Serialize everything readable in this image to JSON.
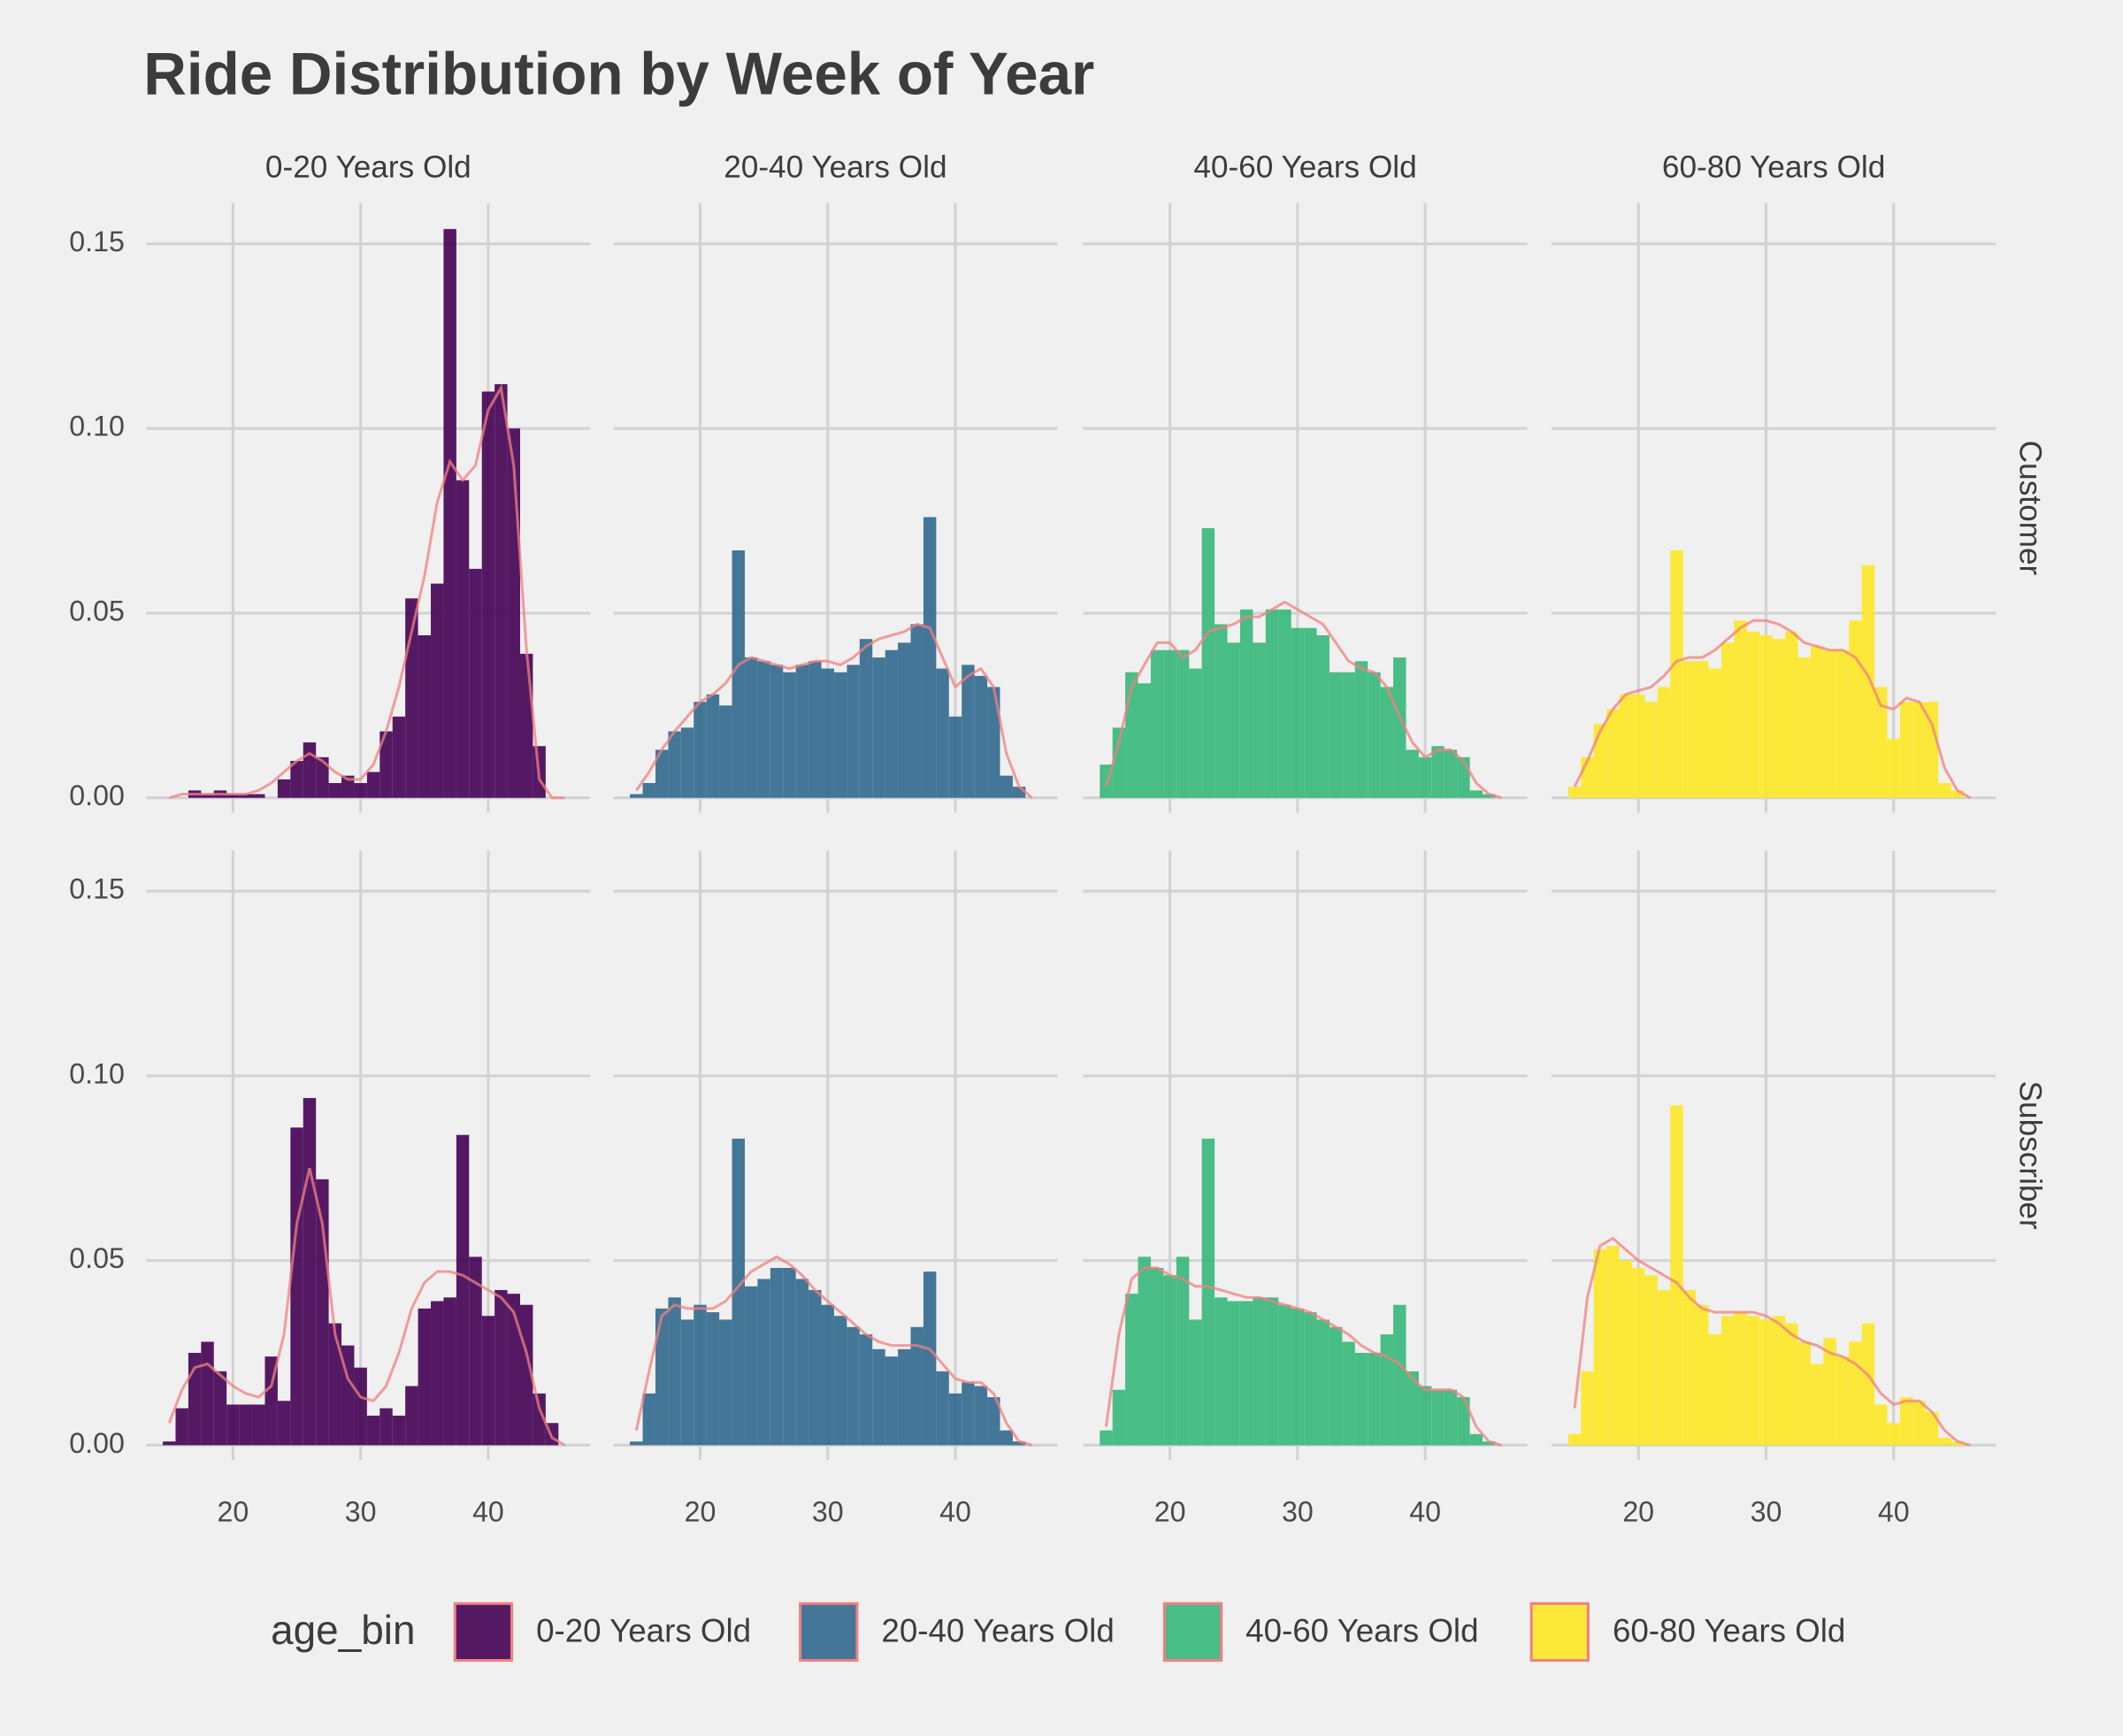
{
  "chart_data": {
    "type": "histogram",
    "title": "Ride Distribution by Week of Year",
    "legend_title": "age_bin",
    "facet_rows": [
      "Customer",
      "Subscriber"
    ],
    "bins": [
      14.5,
      15.5,
      16.5,
      17.5,
      18.5,
      19.5,
      20.5,
      21.5,
      22.5,
      23.5,
      24.5,
      25.5,
      26.5,
      27.5,
      28.5,
      29.5,
      30.5,
      31.5,
      32.5,
      33.5,
      34.5,
      35.5,
      36.5,
      37.5,
      38.5,
      39.5,
      40.5,
      41.5,
      42.5,
      43.5,
      44.5,
      45.5,
      46.5
    ],
    "density_x": [
      15,
      16,
      17,
      18,
      19,
      20,
      21,
      22,
      23,
      24,
      25,
      26,
      27,
      28,
      29,
      30,
      31,
      32,
      33,
      34,
      35,
      36,
      37,
      38,
      39,
      40,
      41,
      42,
      43,
      44,
      45,
      46
    ],
    "xlim": [
      13.2,
      48
    ],
    "xticks": [
      20,
      30,
      40
    ],
    "ylim": [
      -0.004,
      0.161
    ],
    "yticks": [
      {
        "value": 0,
        "label": "0.00"
      },
      0.05,
      {
        "value": 0.1,
        "label": "0.10"
      },
      0.15
    ],
    "grid": true,
    "density_color": "#f08080",
    "series": [
      {
        "name": "0-20 Years Old",
        "color": "#440154",
        "values": [
          [
            0,
            0,
            0.002,
            0.001,
            0.002,
            0.001,
            0.001,
            0.001,
            0,
            0.005,
            0.01,
            0.015,
            0.011,
            0.004,
            0.006,
            0.004,
            0.007,
            0.018,
            0.022,
            0.054,
            0.044,
            0.058,
            0.154,
            0.086,
            0.062,
            0.11,
            0.112,
            0.1,
            0.039,
            0.014,
            0,
            0
          ],
          [
            0.001,
            0.01,
            0.025,
            0.028,
            0.02,
            0.011,
            0.011,
            0.011,
            0.024,
            0.012,
            0.086,
            0.094,
            0.072,
            0.033,
            0.027,
            0.021,
            0.008,
            0.01,
            0.008,
            0.016,
            0.037,
            0.039,
            0.04,
            0.084,
            0.051,
            0.035,
            0.042,
            0.041,
            0.038,
            0.014,
            0.006,
            0
          ]
        ],
        "density": [
          [
            0,
            0.001,
            0.001,
            0.001,
            0.001,
            0.001,
            0.001,
            0.002,
            0.004,
            0.007,
            0.01,
            0.012,
            0.01,
            0.007,
            0.005,
            0.005,
            0.009,
            0.018,
            0.03,
            0.045,
            0.06,
            0.08,
            0.091,
            0.086,
            0.09,
            0.105,
            0.111,
            0.09,
            0.04,
            0.005,
            0,
            0
          ],
          [
            0.006,
            0.015,
            0.021,
            0.022,
            0.019,
            0.016,
            0.014,
            0.013,
            0.016,
            0.03,
            0.06,
            0.075,
            0.06,
            0.03,
            0.018,
            0.013,
            0.012,
            0.016,
            0.025,
            0.037,
            0.044,
            0.047,
            0.047,
            0.046,
            0.044,
            0.042,
            0.04,
            0.036,
            0.025,
            0.01,
            0.002,
            0
          ]
        ]
      },
      {
        "name": "20-40 Years Old",
        "color": "#31688e",
        "values": [
          [
            0.001,
            0.004,
            0.013,
            0.018,
            0.019,
            0.026,
            0.028,
            0.025,
            0.067,
            0.038,
            0.037,
            0.036,
            0.034,
            0.036,
            0.037,
            0.035,
            0.034,
            0.036,
            0.043,
            0.038,
            0.04,
            0.042,
            0.047,
            0.076,
            0.035,
            0.022,
            0.036,
            0.033,
            0.03,
            0.006,
            0.003,
            0
          ],
          [
            0.001,
            0.014,
            0.037,
            0.04,
            0.034,
            0.038,
            0.036,
            0.034,
            0.083,
            0.043,
            0.045,
            0.048,
            0.048,
            0.045,
            0.042,
            0.038,
            0.035,
            0.032,
            0.03,
            0.026,
            0.024,
            0.026,
            0.032,
            0.047,
            0.02,
            0.014,
            0.017,
            0.016,
            0.013,
            0.004,
            0.001,
            0
          ]
        ],
        "density": [
          [
            0.002,
            0.007,
            0.013,
            0.018,
            0.022,
            0.026,
            0.028,
            0.031,
            0.036,
            0.038,
            0.037,
            0.036,
            0.035,
            0.036,
            0.037,
            0.037,
            0.036,
            0.038,
            0.041,
            0.043,
            0.044,
            0.045,
            0.047,
            0.046,
            0.038,
            0.03,
            0.033,
            0.035,
            0.03,
            0.012,
            0.003,
            0
          ],
          [
            0.004,
            0.02,
            0.035,
            0.038,
            0.037,
            0.037,
            0.037,
            0.039,
            0.043,
            0.047,
            0.049,
            0.051,
            0.049,
            0.046,
            0.042,
            0.039,
            0.036,
            0.033,
            0.03,
            0.028,
            0.027,
            0.027,
            0.027,
            0.026,
            0.022,
            0.018,
            0.017,
            0.017,
            0.014,
            0.006,
            0.001,
            0
          ]
        ]
      },
      {
        "name": "40-60 Years Old",
        "color": "#35b779",
        "values": [
          [
            0.009,
            0.019,
            0.034,
            0.031,
            0.04,
            0.04,
            0.04,
            0.035,
            0.073,
            0.047,
            0.042,
            0.051,
            0.042,
            0.051,
            0.051,
            0.046,
            0.046,
            0.044,
            0.034,
            0.034,
            0.037,
            0.034,
            0.03,
            0.038,
            0.013,
            0.011,
            0.014,
            0.013,
            0.011,
            0.002,
            0.001,
            0
          ],
          [
            0.004,
            0.015,
            0.041,
            0.051,
            0.048,
            0.046,
            0.051,
            0.034,
            0.083,
            0.04,
            0.039,
            0.039,
            0.04,
            0.04,
            0.038,
            0.037,
            0.036,
            0.034,
            0.032,
            0.028,
            0.025,
            0.025,
            0.03,
            0.038,
            0.02,
            0.016,
            0.015,
            0.015,
            0.013,
            0.003,
            0.001,
            0
          ]
        ],
        "density": [
          [
            0.003,
            0.015,
            0.03,
            0.036,
            0.042,
            0.042,
            0.038,
            0.04,
            0.045,
            0.046,
            0.047,
            0.049,
            0.049,
            0.051,
            0.053,
            0.051,
            0.049,
            0.047,
            0.042,
            0.037,
            0.035,
            0.034,
            0.03,
            0.022,
            0.015,
            0.011,
            0.013,
            0.013,
            0.01,
            0.004,
            0.001,
            0
          ],
          [
            0.005,
            0.03,
            0.045,
            0.048,
            0.048,
            0.046,
            0.045,
            0.043,
            0.043,
            0.042,
            0.041,
            0.04,
            0.04,
            0.039,
            0.038,
            0.037,
            0.036,
            0.034,
            0.032,
            0.03,
            0.027,
            0.025,
            0.024,
            0.022,
            0.018,
            0.015,
            0.015,
            0.015,
            0.013,
            0.005,
            0.001,
            0
          ]
        ]
      },
      {
        "name": "60-80 Years Old",
        "color": "#fde725",
        "values": [
          [
            0.003,
            0.011,
            0.02,
            0.024,
            0.028,
            0.028,
            0.026,
            0.03,
            0.067,
            0.037,
            0.037,
            0.035,
            0.042,
            0.048,
            0.045,
            0.044,
            0.043,
            0.045,
            0.038,
            0.041,
            0.04,
            0.04,
            0.048,
            0.063,
            0.03,
            0.016,
            0.026,
            0.026,
            0.026,
            0.004,
            0.002,
            0
          ],
          [
            0.003,
            0.02,
            0.053,
            0.054,
            0.05,
            0.048,
            0.046,
            0.042,
            0.092,
            0.042,
            0.038,
            0.03,
            0.035,
            0.036,
            0.035,
            0.034,
            0.035,
            0.033,
            0.028,
            0.022,
            0.029,
            0.024,
            0.028,
            0.033,
            0.011,
            0.006,
            0.013,
            0.012,
            0.009,
            0.002,
            0.001,
            0
          ]
        ],
        "density": [
          [
            0.003,
            0.01,
            0.018,
            0.024,
            0.028,
            0.029,
            0.03,
            0.033,
            0.037,
            0.038,
            0.038,
            0.04,
            0.043,
            0.046,
            0.048,
            0.048,
            0.047,
            0.045,
            0.042,
            0.041,
            0.04,
            0.04,
            0.038,
            0.033,
            0.025,
            0.024,
            0.027,
            0.026,
            0.02,
            0.008,
            0.002,
            0
          ],
          [
            0.01,
            0.04,
            0.054,
            0.056,
            0.053,
            0.05,
            0.048,
            0.046,
            0.044,
            0.04,
            0.037,
            0.036,
            0.036,
            0.036,
            0.036,
            0.035,
            0.033,
            0.03,
            0.028,
            0.027,
            0.025,
            0.024,
            0.022,
            0.019,
            0.014,
            0.011,
            0.012,
            0.012,
            0.009,
            0.004,
            0.001,
            0
          ]
        ]
      }
    ]
  }
}
